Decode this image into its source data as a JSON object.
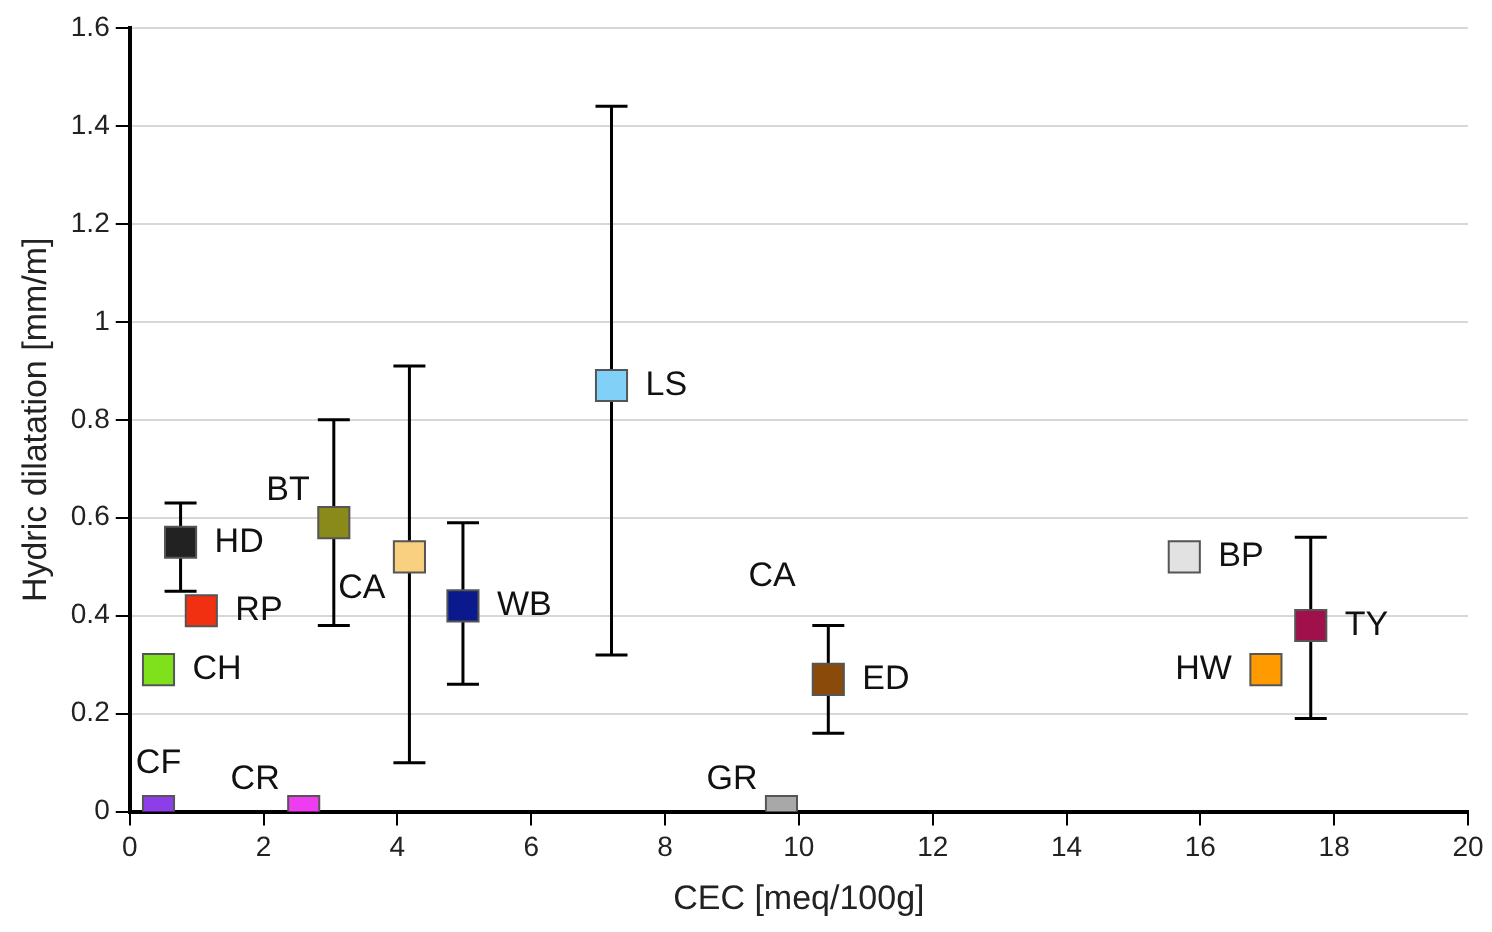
{
  "chart_data": {
    "type": "scatter",
    "xlabel": "CEC [meq/100g]",
    "ylabel": "Hydric dilatation [mm/m]",
    "xlim": [
      0,
      20
    ],
    "xticks": [
      0,
      2,
      4,
      6,
      8,
      10,
      12,
      14,
      16,
      18,
      20
    ],
    "ylim": [
      0,
      1.6
    ],
    "yticks": [
      0,
      0.2,
      0.4,
      0.6,
      0.8,
      1,
      1.2,
      1.4,
      1.6
    ],
    "grid": "y",
    "legend": false,
    "marker": "square",
    "series": [
      {
        "name": "CF",
        "color": "#8e3ee8",
        "x": [
          0.43
        ],
        "values": [
          0
        ]
      },
      {
        "name": "CR",
        "color": "#f03cf0",
        "x": [
          2.6
        ],
        "values": [
          0
        ]
      },
      {
        "name": "CH",
        "color": "#7fe01c",
        "x": [
          0.43
        ],
        "values": [
          0.29
        ]
      },
      {
        "name": "RP",
        "color": "#f03010",
        "x": [
          1.07
        ],
        "values": [
          0.41
        ]
      },
      {
        "name": "HD",
        "color": "#222222",
        "x": [
          0.76
        ],
        "values": [
          0.55
        ],
        "errors": [
          [
            0.45,
            0.63
          ]
        ]
      },
      {
        "name": "BT",
        "color": "#8a8a1a",
        "x": [
          3.05
        ],
        "values": [
          0.59
        ],
        "errors": [
          [
            0.38,
            0.8
          ]
        ]
      },
      {
        "name": "CA",
        "color": "#f8d080",
        "x": [
          4.18
        ],
        "values": [
          0.52
        ],
        "errors": [
          [
            0.1,
            0.91
          ]
        ]
      },
      {
        "name": "WB",
        "color": "#0a1a8c",
        "x": [
          4.98
        ],
        "values": [
          0.42
        ],
        "errors": [
          [
            0.26,
            0.59
          ]
        ]
      },
      {
        "name": "LS",
        "color": "#80d0f8",
        "x": [
          7.2
        ],
        "values": [
          0.87
        ],
        "errors": [
          [
            0.32,
            1.44
          ]
        ]
      },
      {
        "name": "GR",
        "color": "#a8a8a8",
        "x": [
          9.74
        ],
        "values": [
          0
        ]
      },
      {
        "name": "ED",
        "color": "#8a4a0a",
        "x": [
          10.44
        ],
        "values": [
          0.27
        ],
        "errors": [
          [
            0.16,
            0.38
          ]
        ]
      },
      {
        "name": "BP",
        "color": "#e2e2e2",
        "x": [
          15.76
        ],
        "values": [
          0.52
        ]
      },
      {
        "name": "HW",
        "color": "#ff9a00",
        "x": [
          16.98
        ],
        "values": [
          0.29
        ]
      },
      {
        "name": "TY",
        "color": "#a0104a",
        "x": [
          17.65
        ],
        "values": [
          0.38
        ],
        "errors": [
          [
            0.19,
            0.56
          ]
        ]
      }
    ],
    "annotations": [
      "CA"
    ]
  }
}
